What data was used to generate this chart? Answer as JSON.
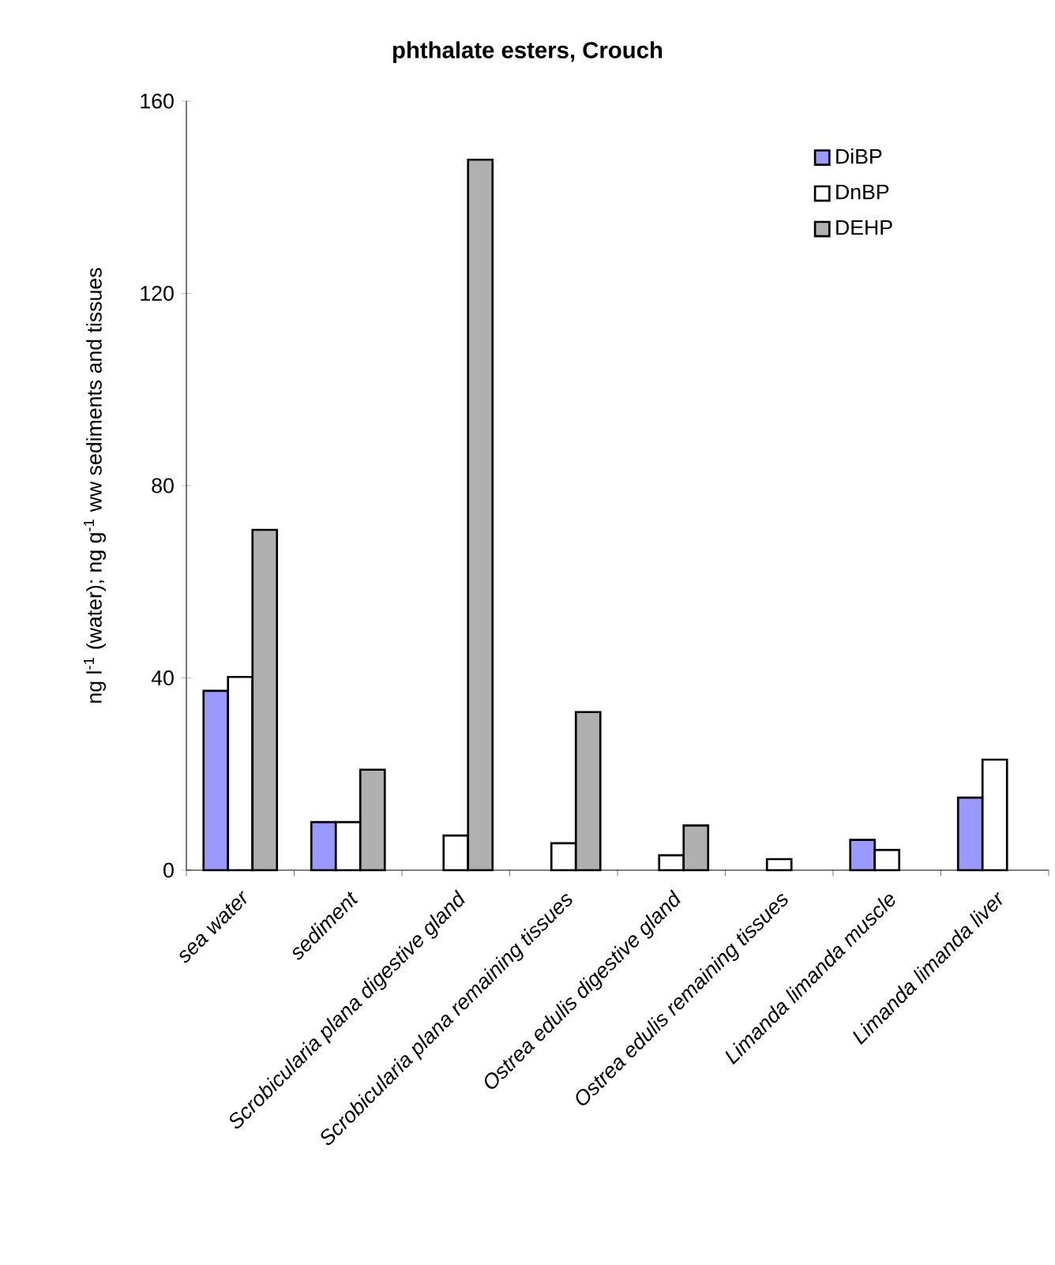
{
  "chart_data": {
    "type": "bar",
    "title": "phthalate esters, Crouch",
    "ylabel": "ng l$^{-1}$ (water); ng g$^{-1}$ ww sediments and tissues",
    "categories": [
      "sea water",
      "sediment",
      "Scrobicularia plana digestive gland",
      "Scrobicularia plana remaining tissues",
      "Ostrea edulis digestive gland",
      "Ostrea edulis remaining tissues",
      "Limanda limanda muscle",
      "Limanda limanda liver"
    ],
    "series": [
      {
        "name": "DiBP",
        "color": "#9999ff",
        "values": [
          37.3,
          10,
          null,
          null,
          null,
          null,
          6.3,
          15.1
        ]
      },
      {
        "name": "DnBP",
        "color": "#ffffff",
        "values": [
          40.2,
          10,
          7.2,
          5.6,
          3.1,
          2.3,
          4.2,
          23
        ]
      },
      {
        "name": "DEHP",
        "color": "#b0b0b0",
        "values": [
          70.8,
          20.9,
          147.8,
          32.9,
          9.3,
          null,
          null,
          null
        ]
      }
    ],
    "ylim": [
      0,
      160
    ],
    "yticks": [
      0,
      40,
      80,
      120,
      160
    ],
    "legend": "top right"
  }
}
